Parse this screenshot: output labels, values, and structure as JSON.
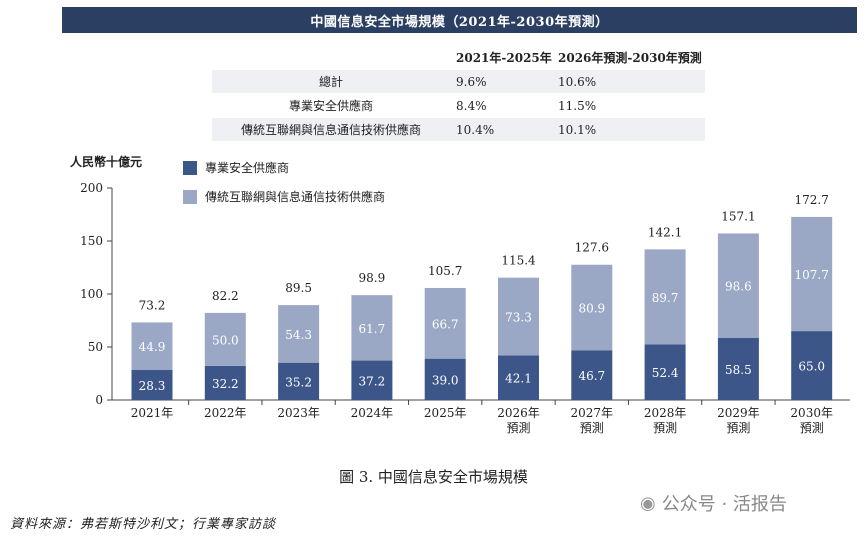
{
  "banner_title": "中國信息安全市場規模（2021年-2030年預測）",
  "table": {
    "headers": [
      "",
      "2021年-2025年",
      "2026年預測-2030年預測"
    ],
    "rows": [
      {
        "label": "總計",
        "v1": "9.6%",
        "v2": "10.6%"
      },
      {
        "label": "專業安全供應商",
        "v1": "8.4%",
        "v2": "11.5%"
      },
      {
        "label": "傳統互聯網與信息通信技術供應商",
        "v1": "10.4%",
        "v2": "10.1%"
      }
    ]
  },
  "chart_data": {
    "type": "bar",
    "stacked": true,
    "ylabel": "人民幣十億元",
    "ylim": [
      0,
      200
    ],
    "yticks": [
      0,
      50,
      100,
      150,
      200
    ],
    "grid": false,
    "legend_position": "top-left",
    "categories": [
      [
        "2021年"
      ],
      [
        "2022年"
      ],
      [
        "2023年"
      ],
      [
        "2024年"
      ],
      [
        "2025年"
      ],
      [
        "2026年",
        "預測"
      ],
      [
        "2027年",
        "預測"
      ],
      [
        "2028年",
        "預測"
      ],
      [
        "2029年",
        "預測"
      ],
      [
        "2030年",
        "預測"
      ]
    ],
    "series": [
      {
        "name": "專業安全供應商",
        "color": "#3d5689",
        "values": [
          28.3,
          32.2,
          35.2,
          37.2,
          39.0,
          42.1,
          46.7,
          52.4,
          58.5,
          65.0
        ]
      },
      {
        "name": "傳統互聯網與信息通信技術供應商",
        "color": "#9aa8c6",
        "values": [
          44.9,
          50.0,
          54.3,
          61.7,
          66.7,
          73.3,
          80.9,
          89.7,
          98.6,
          107.7
        ]
      }
    ],
    "totals": [
      73.2,
      82.2,
      89.5,
      98.9,
      105.7,
      115.4,
      127.6,
      142.1,
      157.1,
      172.7
    ]
  },
  "caption": "圖 3. 中國信息安全市場規模",
  "source": "資料來源：弗若斯特沙利文；行業專家訪談",
  "watermark": {
    "icon": "wechat-icon",
    "text": "公众号 · 活报告"
  }
}
